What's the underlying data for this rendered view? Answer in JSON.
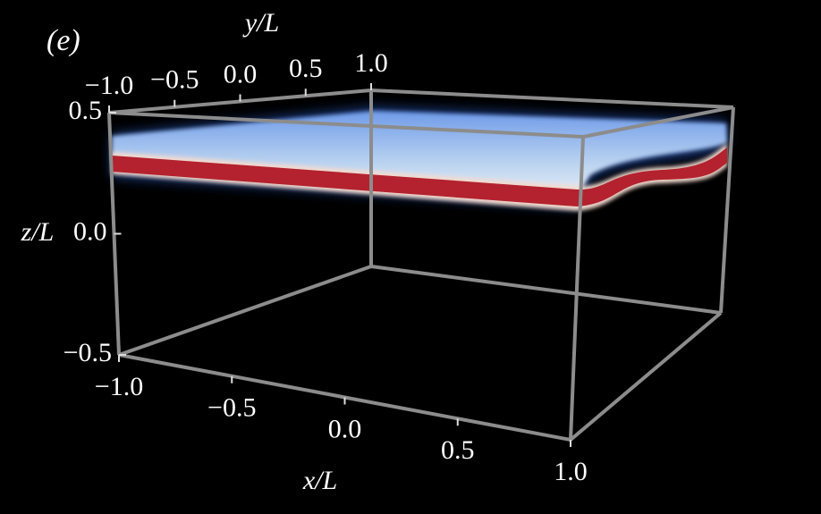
{
  "chart_data": {
    "type": "volume3d",
    "panel_label": "(e)",
    "xlabel": "x/L",
    "ylabel": "y/L",
    "zlabel": "z/L",
    "xlim": [
      -1,
      1
    ],
    "ylim": [
      -1,
      1
    ],
    "zlim": [
      -0.5,
      0.5
    ],
    "xticks": [
      {
        "value": -1,
        "label": "−1.0"
      },
      {
        "value": -0.5,
        "label": "−0.5"
      },
      {
        "value": 0,
        "label": "0.0"
      },
      0.5,
      {
        "value": 1,
        "label": "1.0"
      }
    ],
    "yticks": [
      {
        "value": -1,
        "label": "−1.0"
      },
      {
        "value": -0.5,
        "label": "−0.5"
      },
      {
        "value": 0,
        "label": "0.0"
      },
      0.5,
      {
        "value": 1,
        "label": "1.0"
      }
    ],
    "zticks": [
      {
        "value": -0.5,
        "label": "−0.5"
      },
      {
        "value": 0,
        "label": "0.0"
      },
      0.5
    ]
  }
}
